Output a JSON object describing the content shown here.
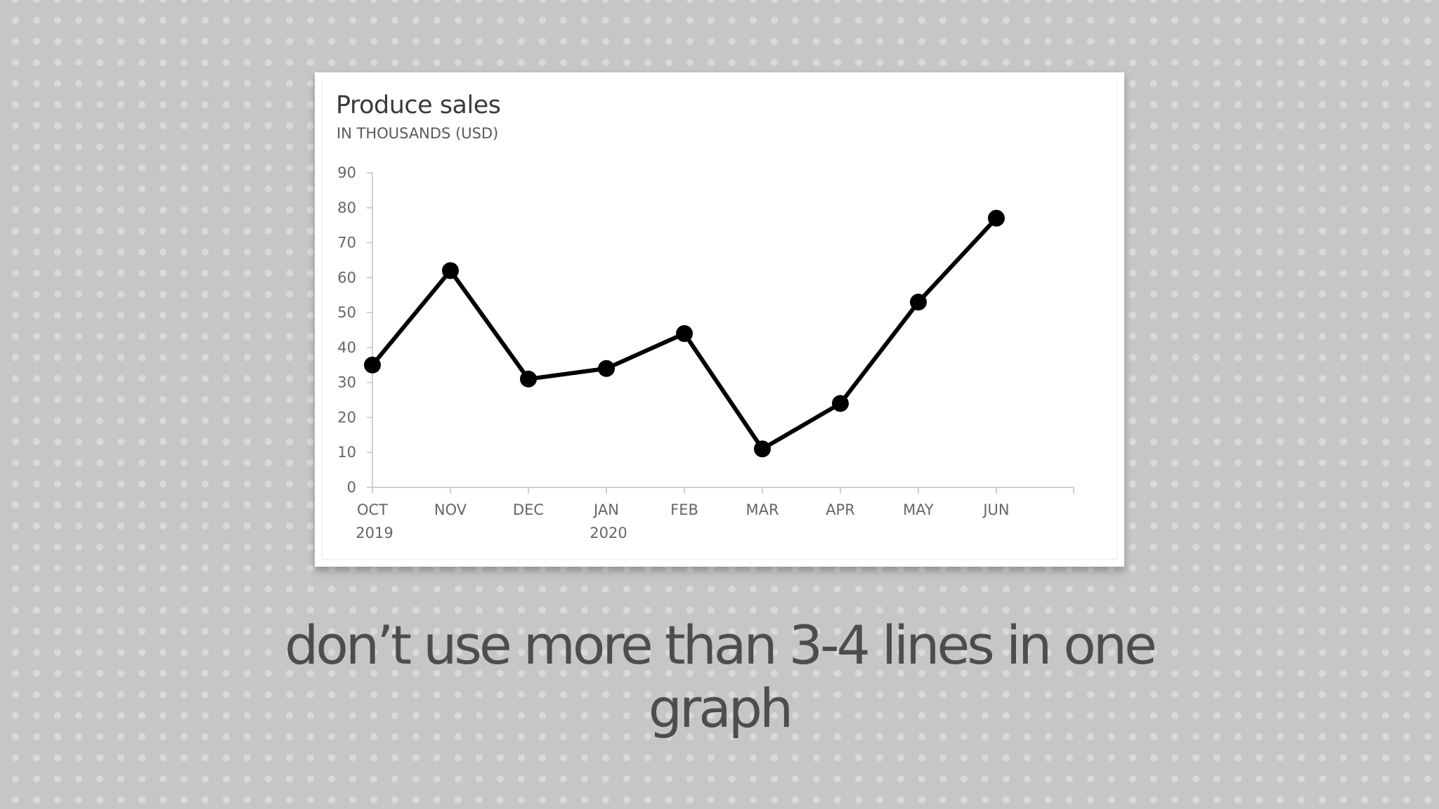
{
  "slide": {
    "caption_line1": "don’t use more than 3-4 lines in one",
    "caption_line2": "graph"
  },
  "chart_data": {
    "type": "line",
    "title": "Produce sales",
    "subtitle": "IN THOUSANDS (USD)",
    "xlabel": "",
    "ylabel": "",
    "categories": [
      "OCT",
      "NOV",
      "DEC",
      "JAN",
      "FEB",
      "MAR",
      "APR",
      "MAY",
      "JUN"
    ],
    "category_sublabels": [
      "2019",
      "",
      "",
      "2020",
      "",
      "",
      "",
      "",
      ""
    ],
    "series": [
      {
        "values": [
          35,
          62,
          31,
          34,
          44,
          11,
          24,
          53,
          77
        ]
      }
    ],
    "ylim": [
      0,
      90
    ],
    "yticks": [
      0,
      10,
      20,
      30,
      40,
      50,
      60,
      70,
      80,
      90
    ],
    "grid": false,
    "legend": "none",
    "line_color": "#000000"
  }
}
